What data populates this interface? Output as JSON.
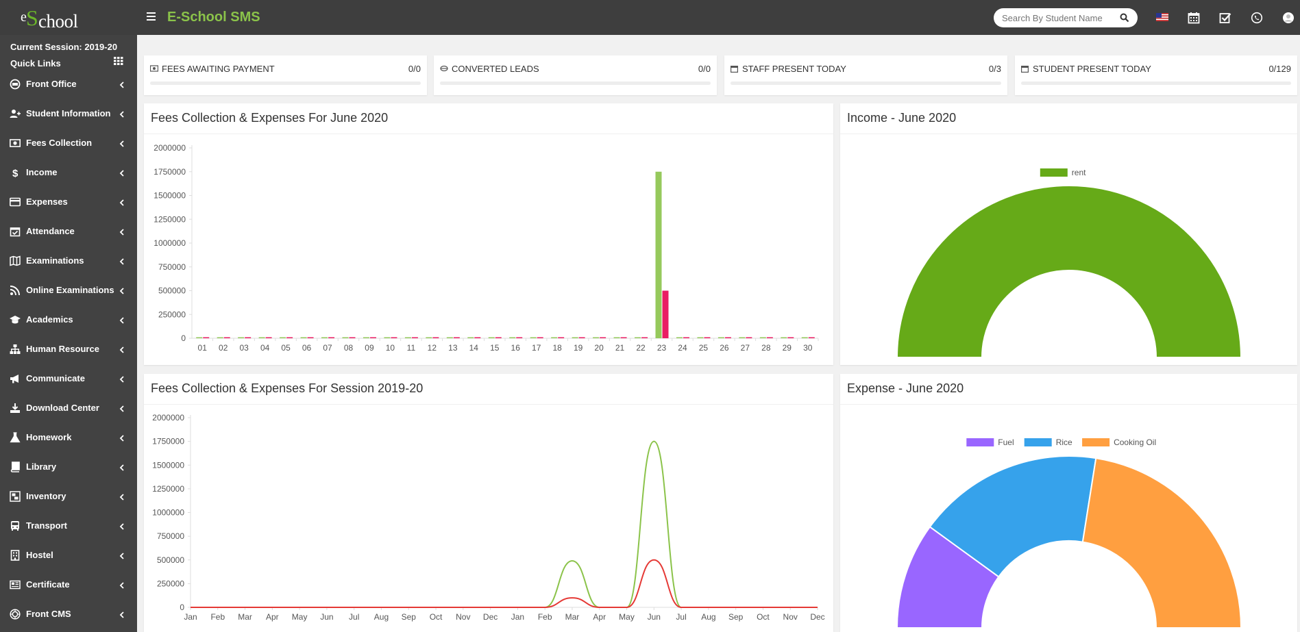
{
  "header": {
    "logo_e": "e",
    "logo_s": "S",
    "logo_rest": "chool",
    "app_title": "E-School SMS",
    "search_placeholder": "Search By Student Name"
  },
  "sidebar": {
    "session": "Current Session: 2019-20",
    "quick_links": "Quick Links",
    "items": [
      {
        "label": "Front Office",
        "icon": "desktop-icon"
      },
      {
        "label": "Student Information",
        "icon": "user-plus-icon"
      },
      {
        "label": "Fees Collection",
        "icon": "money-icon"
      },
      {
        "label": "Income",
        "icon": "dollar-icon"
      },
      {
        "label": "Expenses",
        "icon": "credit-card-icon"
      },
      {
        "label": "Attendance",
        "icon": "calendar-check-icon"
      },
      {
        "label": "Examinations",
        "icon": "map-icon"
      },
      {
        "label": "Online Examinations",
        "icon": "rss-icon"
      },
      {
        "label": "Academics",
        "icon": "graduation-cap-icon"
      },
      {
        "label": "Human Resource",
        "icon": "sitemap-icon"
      },
      {
        "label": "Communicate",
        "icon": "bullhorn-icon"
      },
      {
        "label": "Download Center",
        "icon": "download-icon"
      },
      {
        "label": "Homework",
        "icon": "flask-icon"
      },
      {
        "label": "Library",
        "icon": "book-icon"
      },
      {
        "label": "Inventory",
        "icon": "object-group-icon"
      },
      {
        "label": "Transport",
        "icon": "bus-icon"
      },
      {
        "label": "Hostel",
        "icon": "building-icon"
      },
      {
        "label": "Certificate",
        "icon": "newspaper-icon"
      },
      {
        "label": "Front CMS",
        "icon": "empire-icon"
      }
    ]
  },
  "stats": [
    {
      "label": "Fees Awaiting Payment",
      "value": "0/0",
      "icon": "money-icon"
    },
    {
      "label": "Converted Leads",
      "value": "0/0",
      "icon": "ticket-icon"
    },
    {
      "label": "Staff Present Today",
      "value": "0/3",
      "icon": "calendar-icon"
    },
    {
      "label": "Student Present Today",
      "value": "0/129",
      "icon": "calendar-icon"
    }
  ],
  "panels": {
    "monthly_title": "Fees Collection & Expenses For June 2020",
    "session_title": "Fees Collection & Expenses For Session 2019-20",
    "income_title": "Income - June 2020",
    "expense_title": "Expense - June 2020"
  },
  "colors": {
    "collection": "#8bc34a",
    "expense": "#e91e63",
    "collection_line": "#8bc34a",
    "expense_line": "#e53935",
    "income_rent": "#66aa18",
    "fuel": "#9966ff",
    "rice": "#36a2eb",
    "cooking_oil": "#ff9f40"
  },
  "chart_data": [
    {
      "type": "bar",
      "categories": [
        "01",
        "02",
        "03",
        "04",
        "05",
        "06",
        "07",
        "08",
        "09",
        "10",
        "11",
        "12",
        "13",
        "14",
        "15",
        "16",
        "17",
        "18",
        "19",
        "20",
        "21",
        "22",
        "23",
        "24",
        "25",
        "26",
        "27",
        "28",
        "29",
        "30"
      ],
      "series": [
        {
          "values": [
            0,
            0,
            0,
            0,
            0,
            0,
            0,
            0,
            0,
            0,
            0,
            0,
            0,
            0,
            0,
            0,
            0,
            0,
            0,
            0,
            0,
            0,
            1750000,
            0,
            0,
            0,
            0,
            0,
            0,
            0
          ]
        },
        {
          "values": [
            0,
            0,
            0,
            0,
            0,
            0,
            0,
            0,
            0,
            0,
            0,
            0,
            0,
            0,
            0,
            0,
            0,
            0,
            0,
            0,
            0,
            0,
            500000,
            0,
            0,
            0,
            0,
            0,
            0,
            0
          ]
        }
      ],
      "yticks": [
        "0",
        "250000",
        "500000",
        "750000",
        "1000000",
        "1250000",
        "1500000",
        "1750000",
        "2000000"
      ],
      "ylim": [
        0,
        2000000
      ]
    },
    {
      "type": "line",
      "categories": [
        "Jan",
        "Feb",
        "Mar",
        "Apr",
        "May",
        "Jun",
        "Jul",
        "Aug",
        "Sep",
        "Oct",
        "Nov",
        "Dec",
        "Jan",
        "Feb",
        "Mar",
        "Apr",
        "May",
        "Jun",
        "Jul",
        "Aug",
        "Sep",
        "Oct",
        "Nov",
        "Dec"
      ],
      "series": [
        {
          "values": [
            0,
            0,
            0,
            0,
            0,
            0,
            0,
            0,
            0,
            0,
            0,
            0,
            0,
            0,
            490000,
            0,
            0,
            1750000,
            0,
            0,
            0,
            0,
            0,
            0
          ]
        },
        {
          "values": [
            0,
            0,
            0,
            0,
            0,
            0,
            0,
            0,
            0,
            0,
            0,
            0,
            0,
            0,
            100000,
            0,
            0,
            500000,
            0,
            0,
            0,
            0,
            0,
            0
          ]
        }
      ],
      "yticks": [
        "0",
        "250000",
        "500000",
        "750000",
        "1000000",
        "1250000",
        "1500000",
        "1750000",
        "2000000"
      ],
      "ylim": [
        0,
        2000000
      ]
    },
    {
      "type": "pie",
      "legend": [
        "rent"
      ],
      "values": [
        100
      ]
    },
    {
      "type": "pie",
      "legend": [
        "Fuel",
        "Rice",
        "Cooking Oil"
      ],
      "values": [
        20,
        35,
        45
      ]
    }
  ]
}
